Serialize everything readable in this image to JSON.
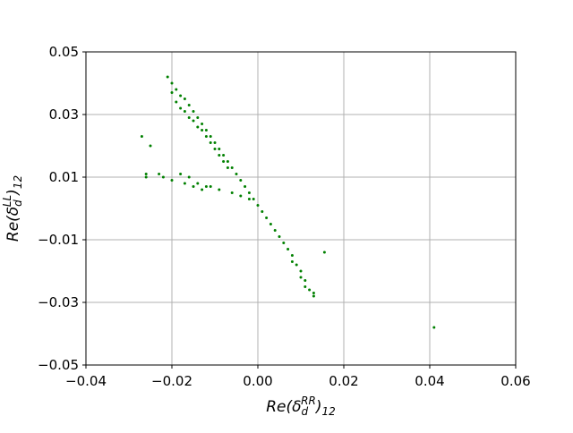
{
  "chart_data": {
    "type": "scatter",
    "xlabel": {
      "base": "Re(δ",
      "sub": "d",
      "sup": "RR",
      "tail": ")",
      "tail_sub": "12"
    },
    "ylabel": {
      "base": "Re(δ",
      "sub": "d",
      "sup": "LL",
      "tail": ")",
      "tail_sub": "12"
    },
    "xlim": [
      -0.04,
      0.06
    ],
    "ylim": [
      -0.05,
      0.05
    ],
    "xticks": [
      {
        "value": -0.04,
        "label": "−0.04"
      },
      {
        "value": -0.02,
        "label": "−0.02"
      },
      {
        "value": 0,
        "label": "0.00"
      },
      0.02,
      0.04,
      0.06
    ],
    "yticks": [
      {
        "value": -0.05,
        "label": "−0.05"
      },
      {
        "value": -0.03,
        "label": "−0.03"
      },
      {
        "value": -0.01,
        "label": "−0.01"
      },
      0.01,
      0.03,
      0.05
    ],
    "grid": true,
    "series": [
      {
        "color": "#008000",
        "x": [
          -0.021,
          -0.02,
          -0.02,
          -0.019,
          -0.019,
          -0.018,
          -0.018,
          -0.017,
          -0.017,
          -0.016,
          -0.016,
          -0.015,
          -0.015,
          -0.014,
          -0.014,
          -0.013,
          -0.013,
          -0.012,
          -0.012,
          -0.011,
          -0.011,
          -0.01,
          -0.01,
          -0.009,
          -0.009,
          -0.008,
          -0.008,
          -0.007,
          -0.007,
          -0.006,
          -0.005,
          -0.004,
          -0.003,
          -0.002,
          -0.001,
          0.0,
          0.001,
          0.002,
          0.003,
          0.004,
          0.005,
          0.006,
          0.007,
          0.008,
          0.008,
          0.009,
          0.01,
          0.01,
          0.011,
          0.011,
          0.012,
          0.013,
          0.013,
          -0.026,
          -0.026,
          -0.023,
          -0.022,
          -0.02,
          -0.018,
          -0.017,
          -0.016,
          -0.015,
          -0.014,
          -0.013,
          -0.012,
          -0.011,
          -0.009,
          -0.006,
          -0.004,
          -0.002,
          -0.027,
          -0.025,
          0.0155,
          0.041
        ],
        "values": [
          0.042,
          0.04,
          0.037,
          0.038,
          0.034,
          0.036,
          0.032,
          0.035,
          0.031,
          0.033,
          0.029,
          0.031,
          0.028,
          0.029,
          0.026,
          0.027,
          0.025,
          0.025,
          0.023,
          0.023,
          0.021,
          0.021,
          0.019,
          0.019,
          0.017,
          0.017,
          0.015,
          0.015,
          0.013,
          0.013,
          0.011,
          0.009,
          0.007,
          0.005,
          0.003,
          0.001,
          -0.001,
          -0.003,
          -0.005,
          -0.007,
          -0.009,
          -0.011,
          -0.013,
          -0.015,
          -0.017,
          -0.018,
          -0.02,
          -0.022,
          -0.023,
          -0.025,
          -0.026,
          -0.027,
          -0.028,
          0.011,
          0.01,
          0.011,
          0.01,
          0.009,
          0.011,
          0.008,
          0.01,
          0.007,
          0.008,
          0.006,
          0.007,
          0.007,
          0.006,
          0.005,
          0.004,
          0.003,
          0.023,
          0.02,
          -0.014,
          -0.038
        ]
      }
    ]
  }
}
